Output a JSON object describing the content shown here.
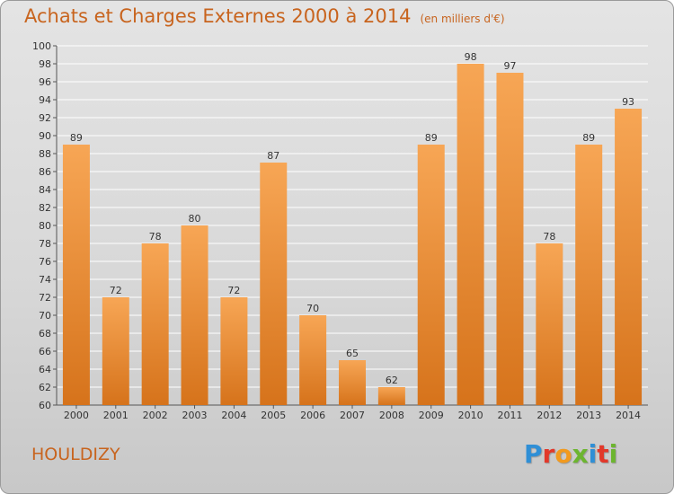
{
  "title": "Achats et Charges Externes 2000 à 2014",
  "subtitle": "(en milliers d'€)",
  "town": "HOULDIZY",
  "logo": {
    "letters": [
      {
        "ch": "P",
        "color": "#2f8fd6"
      },
      {
        "ch": "r",
        "color": "#e2382a"
      },
      {
        "ch": "o",
        "color": "#f29a1e"
      },
      {
        "ch": "x",
        "color": "#6cb52f"
      },
      {
        "ch": "i",
        "color": "#2f8fd6"
      },
      {
        "ch": "t",
        "color": "#e2382a"
      },
      {
        "ch": "i",
        "color": "#6cb52f"
      }
    ]
  },
  "colors": {
    "bar_top": "#f7a655",
    "bar_bottom": "#d6731b",
    "grid": "#ffffff",
    "text": "#333333",
    "title": "#c8641e"
  },
  "chart_data": {
    "type": "bar",
    "categories": [
      "2000",
      "2001",
      "2002",
      "2003",
      "2004",
      "2005",
      "2006",
      "2007",
      "2008",
      "2009",
      "2010",
      "2011",
      "2012",
      "2013",
      "2014"
    ],
    "values": [
      89,
      72,
      78,
      80,
      72,
      87,
      70,
      65,
      62,
      89,
      98,
      97,
      78,
      89,
      93
    ],
    "ylim": [
      60,
      100
    ],
    "ytick_step": 2,
    "grid": true,
    "data_labels": true
  }
}
